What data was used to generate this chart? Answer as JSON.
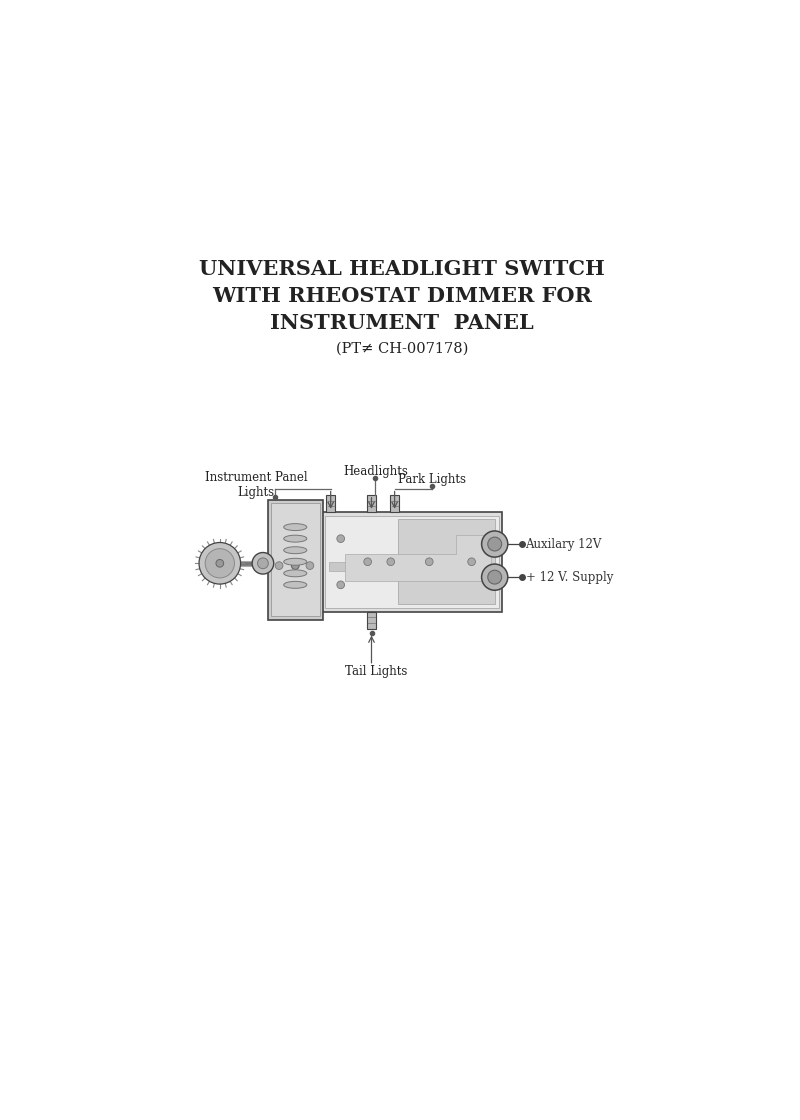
{
  "title_line1": "UNIVERSAL HEADLIGHT SWITCH",
  "title_line2": "WITH RHEOSTAT DIMMER FOR",
  "title_line3": "INSTRUMENT  PANEL",
  "title_line4": "(PT≠ CH-007178)",
  "bg_color": "#ffffff",
  "diagram_color": "#444444",
  "label_color": "#333333",
  "labels": {
    "headlights": "Headlights",
    "park_lights": "Park Lights",
    "instrument_panel": "Instrument Panel\nLights",
    "tail_lights": "Tail Lights",
    "auxiliary": "Auxilary 12V",
    "supply": "+ 12 V. Supply"
  },
  "fig_width": 8.0,
  "fig_height": 11.2
}
